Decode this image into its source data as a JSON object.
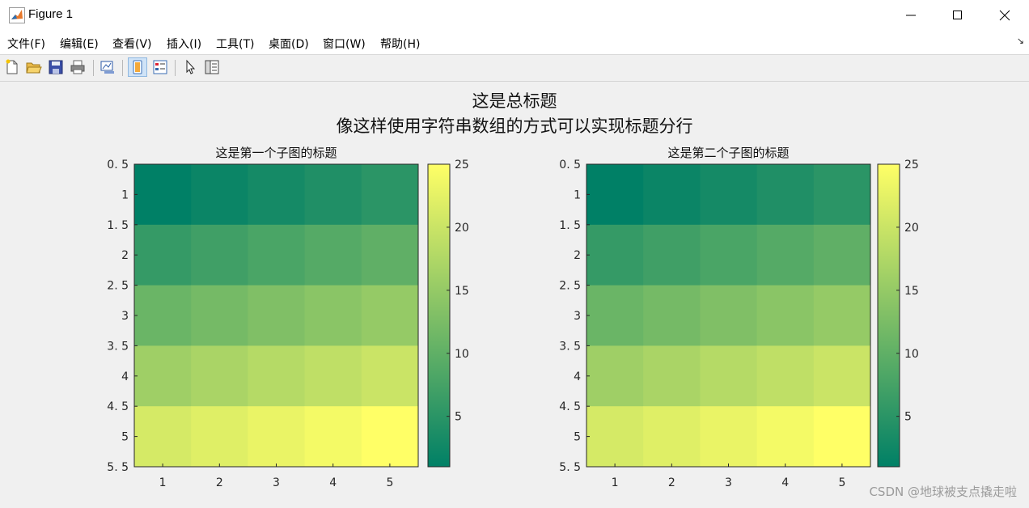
{
  "window": {
    "title": "Figure 1"
  },
  "menu": [
    "文件(F)",
    "编辑(E)",
    "查看(V)",
    "插入(I)",
    "工具(T)",
    "桌面(D)",
    "窗口(W)",
    "帮助(H)"
  ],
  "toolbar": {
    "buttons": [
      "new-figure-icon",
      "open-file-icon",
      "save-icon",
      "print-icon",
      "link-plot-icon",
      "dock-icon",
      "property-inspector-icon",
      "select-arrow-icon",
      "panel-toggle-icon"
    ],
    "active": "dock-icon"
  },
  "figure": {
    "suptitle_line1": "这是总标题",
    "suptitle_line2": "像这样使用字符串数组的方式可以实现标题分行",
    "colormap": "summer"
  },
  "chart_data": [
    {
      "type": "heatmap",
      "title": "这是第一个子图的标题",
      "x_ticks": [
        "1",
        "2",
        "3",
        "4",
        "5"
      ],
      "y_ticks": [
        "0. 5",
        "1",
        "1. 5",
        "2",
        "2. 5",
        "3",
        "3. 5",
        "4",
        "4. 5",
        "5",
        "5. 5"
      ],
      "ylim": [
        0.5,
        5.5
      ],
      "xlim": [
        0.5,
        5.5
      ],
      "y_direction": "reverse",
      "values": [
        [
          1,
          2,
          3,
          4,
          5
        ],
        [
          6,
          7,
          8,
          9,
          10
        ],
        [
          11,
          12,
          13,
          14,
          15
        ],
        [
          16,
          17,
          18,
          19,
          20
        ],
        [
          21,
          22,
          23,
          24,
          25
        ]
      ],
      "colorbar": {
        "ticks": [
          "5",
          "10",
          "15",
          "20",
          "25"
        ],
        "range": [
          1,
          25
        ]
      }
    },
    {
      "type": "heatmap",
      "title": "这是第二个子图的标题",
      "x_ticks": [
        "1",
        "2",
        "3",
        "4",
        "5"
      ],
      "y_ticks": [
        "0. 5",
        "1",
        "1. 5",
        "2",
        "2. 5",
        "3",
        "3. 5",
        "4",
        "4. 5",
        "5",
        "5. 5"
      ],
      "ylim": [
        0.5,
        5.5
      ],
      "xlim": [
        0.5,
        5.5
      ],
      "y_direction": "reverse",
      "values": [
        [
          1,
          2,
          3,
          4,
          5
        ],
        [
          6,
          7,
          8,
          9,
          10
        ],
        [
          11,
          12,
          13,
          14,
          15
        ],
        [
          16,
          17,
          18,
          19,
          20
        ],
        [
          21,
          22,
          23,
          24,
          25
        ]
      ],
      "colorbar": {
        "ticks": [
          "5",
          "10",
          "15",
          "20",
          "25"
        ],
        "range": [
          1,
          25
        ]
      }
    }
  ],
  "watermark": "CSDN @地球被支点撬走啦"
}
